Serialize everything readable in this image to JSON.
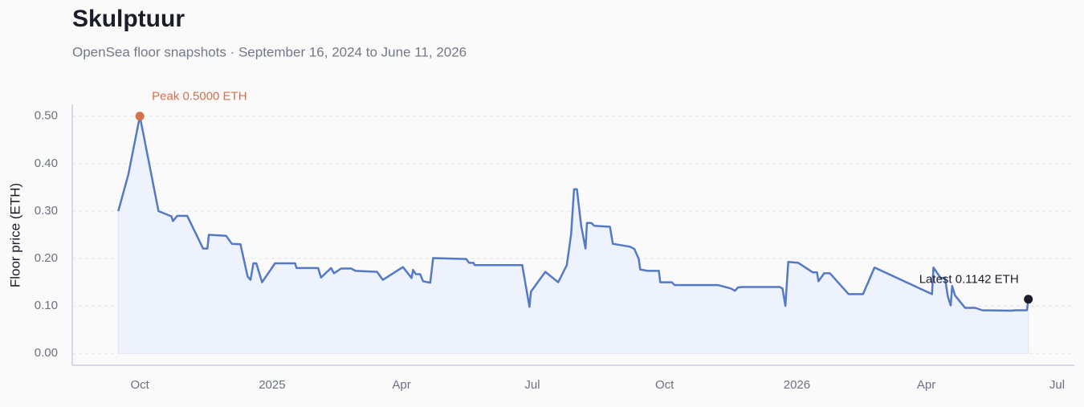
{
  "chart_data": {
    "type": "line",
    "title": "Skulptuur",
    "subtitle": "OpenSea floor snapshots · September 16, 2024 to June 11, 2026",
    "y_label": "Floor price (ETH)",
    "grid": true,
    "area": true,
    "xlim": [
      "2024-08-15",
      "2026-07-13"
    ],
    "ylim": [
      -0.025,
      0.525
    ],
    "yticks": [
      {
        "value": 0,
        "label": "0.00"
      },
      {
        "value": 0.1,
        "label": "0.10"
      },
      {
        "value": 0.2,
        "label": "0.20"
      },
      {
        "value": 0.3,
        "label": "0.30"
      },
      {
        "value": 0.4,
        "label": "0.40"
      },
      {
        "value": 0.5,
        "label": "0.50"
      }
    ],
    "xticks": [
      {
        "value": "2024-10-01",
        "label": "Oct"
      },
      {
        "value": "2025-01-01",
        "label": "2025"
      },
      {
        "value": "2025-04-01",
        "label": "Apr"
      },
      {
        "value": "2025-07-01",
        "label": "Jul"
      },
      {
        "value": "2025-10-01",
        "label": "Oct"
      },
      {
        "value": "2026-01-01",
        "label": "2026"
      },
      {
        "value": "2026-04-01",
        "label": "Apr"
      },
      {
        "value": "2026-07-01",
        "label": "Jul"
      }
    ],
    "x": [
      "2024-09-16",
      "2024-09-23",
      "2024-10-01",
      "2024-10-14",
      "2024-10-23",
      "2024-10-24",
      "2024-10-27",
      "2024-11-03",
      "2024-11-14",
      "2024-11-17",
      "2024-11-18",
      "2024-11-30",
      "2024-12-04",
      "2024-12-10",
      "2024-12-15",
      "2024-12-17",
      "2024-12-19",
      "2024-12-21",
      "2024-12-25",
      "2025-01-03",
      "2025-01-17",
      "2025-01-18",
      "2025-02-02",
      "2025-02-04",
      "2025-02-11",
      "2025-02-13",
      "2025-02-18",
      "2025-02-25",
      "2025-02-28",
      "2025-03-15",
      "2025-03-19",
      "2025-04-02",
      "2025-04-08",
      "2025-04-09",
      "2025-04-11",
      "2025-04-14",
      "2025-04-16",
      "2025-04-21",
      "2025-04-23",
      "2025-05-16",
      "2025-05-18",
      "2025-05-21",
      "2025-05-22",
      "2025-06-24",
      "2025-06-29",
      "2025-06-30",
      "2025-07-10",
      "2025-07-19",
      "2025-07-25",
      "2025-07-28",
      "2025-07-30",
      "2025-08-01",
      "2025-08-04",
      "2025-08-07",
      "2025-08-08",
      "2025-08-11",
      "2025-08-13",
      "2025-08-24",
      "2025-08-26",
      "2025-09-07",
      "2025-09-10",
      "2025-09-13",
      "2025-09-14",
      "2025-09-19",
      "2025-09-27",
      "2025-09-28",
      "2025-10-06",
      "2025-10-08",
      "2025-11-07",
      "2025-11-16",
      "2025-11-19",
      "2025-11-21",
      "2025-11-24",
      "2025-12-20",
      "2025-12-22",
      "2025-12-24",
      "2025-12-26",
      "2026-01-02",
      "2026-01-12",
      "2026-01-15",
      "2026-01-16",
      "2026-01-20",
      "2026-01-24",
      "2026-02-06",
      "2026-02-16",
      "2026-02-24",
      "2026-04-05",
      "2026-04-06",
      "2026-04-11",
      "2026-04-14",
      "2026-04-16",
      "2026-04-18",
      "2026-04-19",
      "2026-04-21",
      "2026-04-28",
      "2026-05-05",
      "2026-05-10",
      "2026-05-30",
      "2026-06-02",
      "2026-06-10",
      "2026-06-11"
    ],
    "series": [
      {
        "name": "Floor price",
        "color": "#5479c6",
        "fill": "#edf2fc",
        "values": [
          0.3,
          0.377,
          0.5,
          0.3,
          0.289,
          0.279,
          0.29,
          0.29,
          0.221,
          0.221,
          0.25,
          0.248,
          0.231,
          0.23,
          0.162,
          0.155,
          0.19,
          0.19,
          0.15,
          0.19,
          0.19,
          0.18,
          0.18,
          0.16,
          0.18,
          0.169,
          0.179,
          0.179,
          0.174,
          0.172,
          0.155,
          0.182,
          0.159,
          0.176,
          0.167,
          0.167,
          0.152,
          0.149,
          0.201,
          0.199,
          0.191,
          0.191,
          0.186,
          0.186,
          0.098,
          0.13,
          0.172,
          0.15,
          0.186,
          0.252,
          0.346,
          0.346,
          0.269,
          0.221,
          0.275,
          0.275,
          0.269,
          0.267,
          0.231,
          0.225,
          0.22,
          0.199,
          0.177,
          0.174,
          0.174,
          0.15,
          0.15,
          0.144,
          0.144,
          0.137,
          0.132,
          0.139,
          0.14,
          0.14,
          0.137,
          0.1,
          0.193,
          0.191,
          0.171,
          0.171,
          0.152,
          0.169,
          0.169,
          0.125,
          0.125,
          0.181,
          0.125,
          0.181,
          0.159,
          0.159,
          0.12,
          0.101,
          0.142,
          0.122,
          0.096,
          0.096,
          0.091,
          0.09,
          0.091,
          0.091,
          0.1142
        ]
      }
    ],
    "annotations": [
      {
        "text": "Peak 0.5000 ETH",
        "x": "2024-10-01",
        "y": 0.5,
        "color": "#d4704a"
      },
      {
        "text": "Latest 0.1142 ETH",
        "x": "2026-06-11",
        "y": 0.1142,
        "color": "#1b1d2a"
      }
    ]
  }
}
